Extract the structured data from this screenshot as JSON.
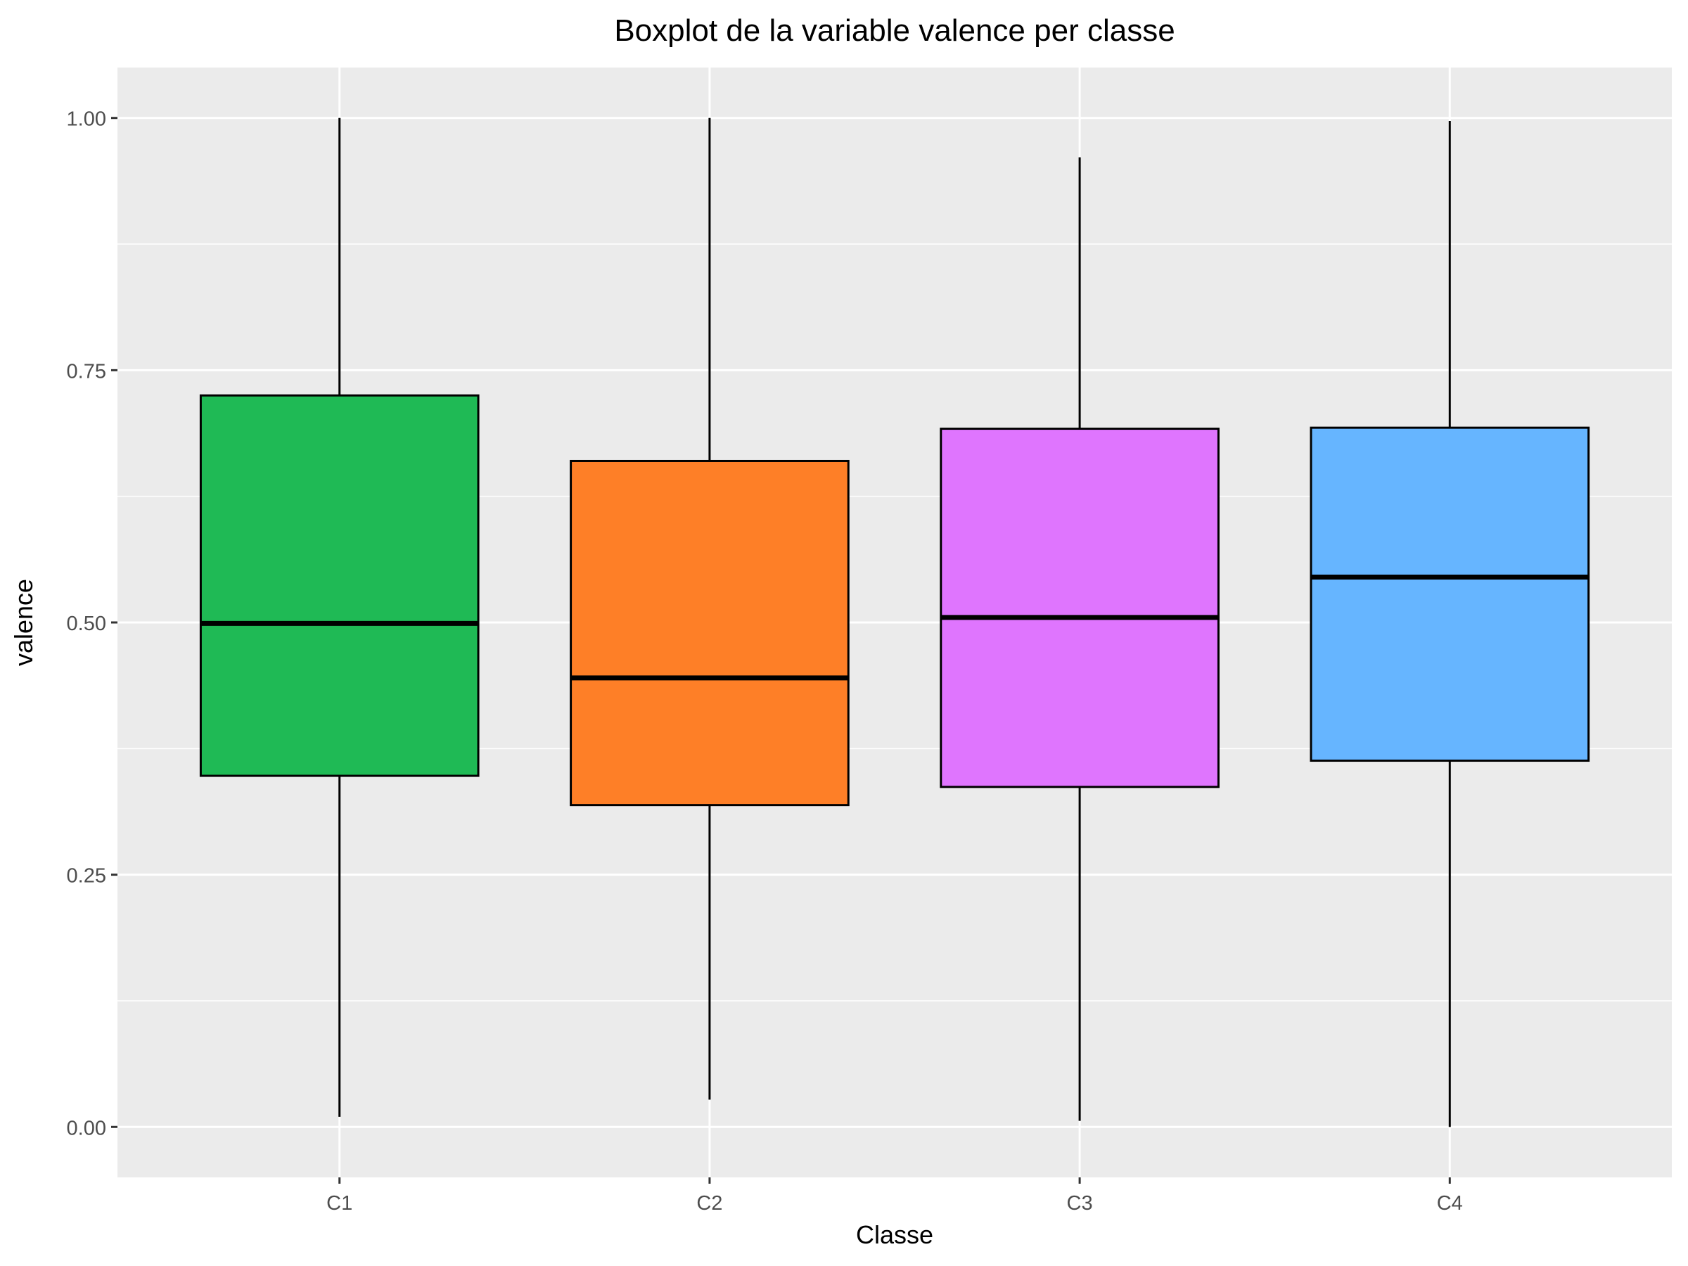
{
  "chart_data": {
    "type": "boxplot",
    "title": "Boxplot de la variable valence per classe",
    "xlabel": "Classe",
    "ylabel": "valence",
    "ylim": [
      -0.05,
      1.05
    ],
    "yticks": [
      0.0,
      0.25,
      0.5,
      0.75,
      1.0
    ],
    "ytick_labels": [
      "0.00",
      "0.25",
      "0.50",
      "0.75",
      "1.00"
    ],
    "grid": true,
    "legend": "none",
    "categories": [
      "C1",
      "C2",
      "C3",
      "C4"
    ],
    "boxes": [
      {
        "category": "C1",
        "whisker_low": 0.01,
        "q1": 0.348,
        "median": 0.499,
        "q3": 0.725,
        "whisker_high": 1.0,
        "color": "#1fba55"
      },
      {
        "category": "C2",
        "whisker_low": 0.027,
        "q1": 0.319,
        "median": 0.445,
        "q3": 0.66,
        "whisker_high": 1.0,
        "color": "#fe7f27"
      },
      {
        "category": "C3",
        "whisker_low": 0.006,
        "q1": 0.337,
        "median": 0.505,
        "q3": 0.692,
        "whisker_high": 0.961,
        "color": "#df75fe"
      },
      {
        "category": "C4",
        "whisker_low": 0.0,
        "q1": 0.363,
        "median": 0.545,
        "q3": 0.693,
        "whisker_high": 0.997,
        "color": "#66b5ff"
      }
    ]
  }
}
